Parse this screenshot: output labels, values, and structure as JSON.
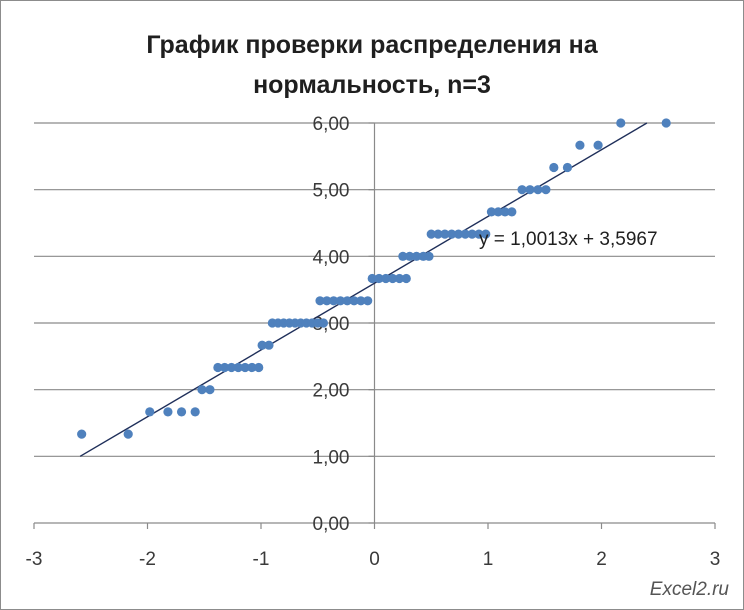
{
  "chart_data": {
    "type": "scatter",
    "title_lines": [
      "График проверки распределения на",
      "нормальность, n=3"
    ],
    "xlim": [
      -3,
      3
    ],
    "ylim": [
      0,
      6
    ],
    "x_ticks": [
      -3,
      -2,
      -1,
      0,
      1,
      2,
      3
    ],
    "x_tick_labels": [
      "-3",
      "-2",
      "-1",
      "0",
      "1",
      "2",
      "3"
    ],
    "y_ticks": [
      0,
      1,
      2,
      3,
      4,
      5,
      6
    ],
    "y_tick_labels": [
      "0,00",
      "1,00",
      "2,00",
      "3,00",
      "4,00",
      "5,00",
      "6,00"
    ],
    "grid": "horizontal",
    "marker_color": "#4f81bd",
    "trendline": {
      "slope": 1.0013,
      "intercept": 3.5967,
      "color": "#1f2f5a",
      "equation_label": "y = 1,0013x + 3,5967"
    },
    "series": [
      {
        "points": [
          [
            -2.58,
            1.333
          ],
          [
            -2.17,
            1.333
          ],
          [
            -1.98,
            1.667
          ],
          [
            -1.82,
            1.667
          ],
          [
            -1.7,
            1.667
          ],
          [
            -1.58,
            1.667
          ],
          [
            -1.52,
            2.0
          ],
          [
            -1.45,
            2.0
          ],
          [
            -1.38,
            2.333
          ],
          [
            -1.32,
            2.333
          ],
          [
            -1.26,
            2.333
          ],
          [
            -1.2,
            2.333
          ],
          [
            -1.14,
            2.333
          ],
          [
            -1.08,
            2.333
          ],
          [
            -1.02,
            2.333
          ],
          [
            -0.99,
            2.667
          ],
          [
            -0.93,
            2.667
          ],
          [
            -0.9,
            3.0
          ],
          [
            -0.85,
            3.0
          ],
          [
            -0.8,
            3.0
          ],
          [
            -0.75,
            3.0
          ],
          [
            -0.7,
            3.0
          ],
          [
            -0.65,
            3.0
          ],
          [
            -0.6,
            3.0
          ],
          [
            -0.55,
            3.0
          ],
          [
            -0.5,
            3.0
          ],
          [
            -0.45,
            3.0
          ],
          [
            -0.48,
            3.333
          ],
          [
            -0.42,
            3.333
          ],
          [
            -0.36,
            3.333
          ],
          [
            -0.3,
            3.333
          ],
          [
            -0.24,
            3.333
          ],
          [
            -0.18,
            3.333
          ],
          [
            -0.12,
            3.333
          ],
          [
            -0.06,
            3.333
          ],
          [
            -0.02,
            3.667
          ],
          [
            0.04,
            3.667
          ],
          [
            0.1,
            3.667
          ],
          [
            0.16,
            3.667
          ],
          [
            0.22,
            3.667
          ],
          [
            0.28,
            3.667
          ],
          [
            0.25,
            4.0
          ],
          [
            0.31,
            4.0
          ],
          [
            0.37,
            4.0
          ],
          [
            0.43,
            4.0
          ],
          [
            0.48,
            4.0
          ],
          [
            0.5,
            4.333
          ],
          [
            0.56,
            4.333
          ],
          [
            0.62,
            4.333
          ],
          [
            0.68,
            4.333
          ],
          [
            0.74,
            4.333
          ],
          [
            0.8,
            4.333
          ],
          [
            0.86,
            4.333
          ],
          [
            0.92,
            4.333
          ],
          [
            0.98,
            4.333
          ],
          [
            1.03,
            4.667
          ],
          [
            1.09,
            4.667
          ],
          [
            1.15,
            4.667
          ],
          [
            1.21,
            4.667
          ],
          [
            1.3,
            5.0
          ],
          [
            1.37,
            5.0
          ],
          [
            1.44,
            5.0
          ],
          [
            1.51,
            5.0
          ],
          [
            1.58,
            5.333
          ],
          [
            1.7,
            5.333
          ],
          [
            1.81,
            5.667
          ],
          [
            1.97,
            5.667
          ],
          [
            2.17,
            6.0
          ],
          [
            2.57,
            6.0
          ]
        ]
      }
    ]
  },
  "watermark": "Excel2.ru"
}
